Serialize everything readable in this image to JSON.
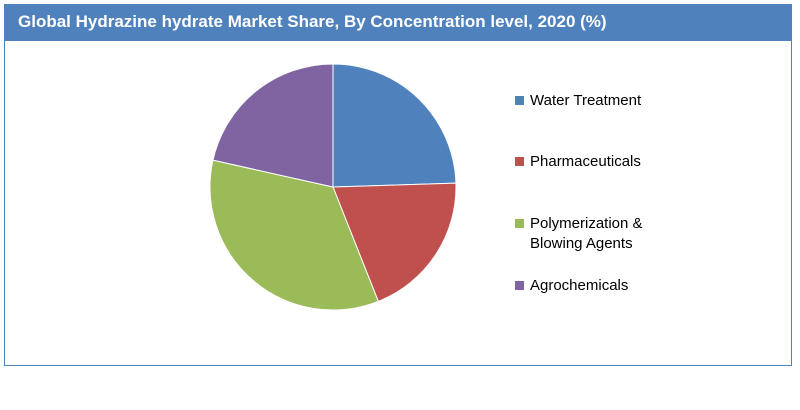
{
  "chart_data": {
    "type": "pie",
    "title": "Global Hydrazine hydrate Market Share, By Concentration level, 2020 (%)",
    "categories": [
      "Water Treatment",
      "Pharmaceuticals",
      "Polymerization & Blowing Agents",
      "Agrochemicals"
    ],
    "legend_labels": [
      "Water Treatment",
      "Pharmaceuticals",
      "Polymerization &\nBlowing Agents",
      "Agrochemicals"
    ],
    "values": [
      24.5,
      19.5,
      34.5,
      21.5
    ],
    "colors": [
      "#4f81bd",
      "#c0504d",
      "#9bbb59",
      "#8064a2"
    ],
    "legend_position": "right"
  }
}
